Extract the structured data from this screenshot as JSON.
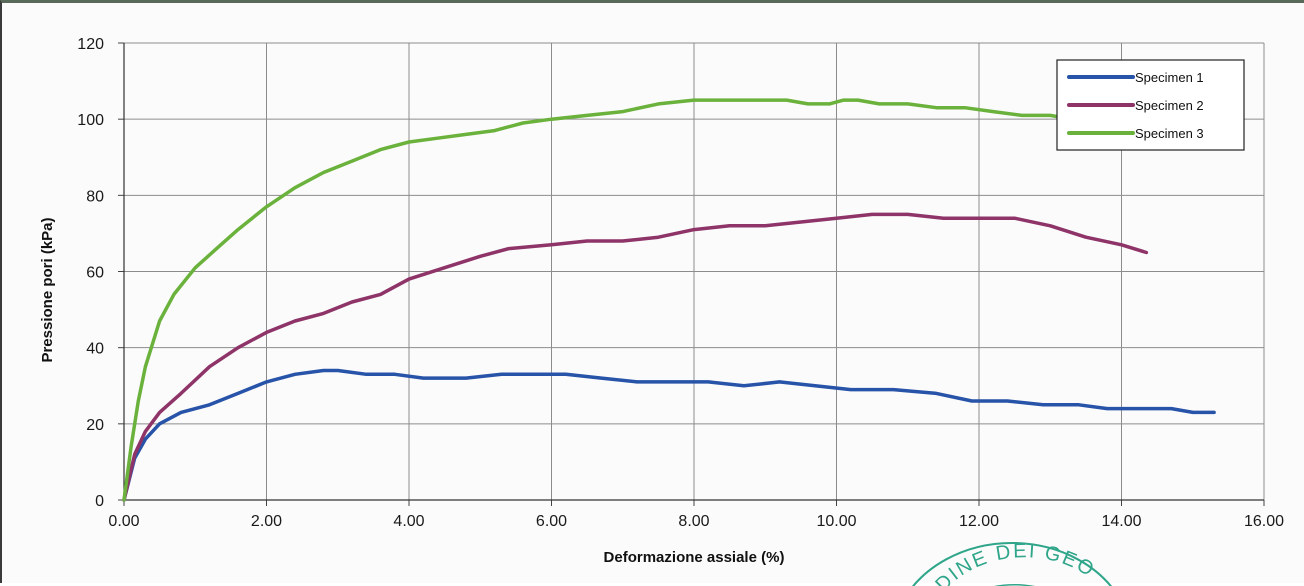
{
  "chart_data": {
    "type": "line",
    "xlabel": "Deformazione assiale (%)",
    "ylabel": "Pressione pori (kPa)",
    "xlim": [
      0,
      16
    ],
    "ylim": [
      0,
      120
    ],
    "x_ticks": [
      "0.00",
      "2.00",
      "4.00",
      "6.00",
      "8.00",
      "10.00",
      "12.00",
      "14.00",
      "16.00"
    ],
    "y_ticks": [
      "0",
      "20",
      "40",
      "60",
      "80",
      "100",
      "120"
    ],
    "grid": true,
    "legend_position": "top-right",
    "series": [
      {
        "name": "Specimen 1",
        "color": "#2753a8",
        "x": [
          0,
          0.15,
          0.3,
          0.5,
          0.8,
          1.2,
          1.6,
          2.0,
          2.4,
          2.8,
          3.0,
          3.4,
          3.8,
          4.2,
          4.8,
          5.3,
          5.7,
          6.2,
          6.7,
          7.2,
          7.6,
          8.2,
          8.7,
          9.2,
          9.7,
          10.2,
          10.8,
          11.4,
          11.9,
          12.4,
          12.9,
          13.4,
          13.8,
          14.3,
          14.7,
          15.0,
          15.3
        ],
        "y": [
          0,
          11,
          16,
          20,
          23,
          25,
          28,
          31,
          33,
          34,
          34,
          33,
          33,
          32,
          32,
          33,
          33,
          33,
          32,
          31,
          31,
          31,
          30,
          31,
          30,
          29,
          29,
          28,
          26,
          26,
          25,
          25,
          24,
          24,
          24,
          23,
          23
        ]
      },
      {
        "name": "Specimen 2",
        "color": "#8e3468",
        "x": [
          0,
          0.15,
          0.3,
          0.5,
          0.8,
          1.2,
          1.6,
          2.0,
          2.4,
          2.8,
          3.2,
          3.6,
          4.0,
          4.5,
          5.0,
          5.4,
          6.0,
          6.5,
          7.0,
          7.5,
          8.0,
          8.5,
          9.0,
          9.5,
          10.0,
          10.5,
          11.0,
          11.5,
          12.0,
          12.5,
          13.0,
          13.5,
          14.0,
          14.35
        ],
        "y": [
          0,
          12,
          18,
          23,
          28,
          35,
          40,
          44,
          47,
          49,
          52,
          54,
          58,
          61,
          64,
          66,
          67,
          68,
          68,
          69,
          71,
          72,
          72,
          73,
          74,
          75,
          75,
          74,
          74,
          74,
          72,
          69,
          67,
          65
        ]
      },
      {
        "name": "Specimen 3",
        "color": "#6ab23c",
        "x": [
          0,
          0.1,
          0.2,
          0.3,
          0.5,
          0.7,
          1.0,
          1.3,
          1.6,
          2.0,
          2.4,
          2.8,
          3.2,
          3.6,
          4.0,
          4.4,
          4.8,
          5.2,
          5.6,
          6.0,
          6.5,
          7.0,
          7.5,
          8.0,
          8.5,
          9.0,
          9.3,
          9.6,
          9.9,
          10.1,
          10.3,
          10.6,
          11.0,
          11.4,
          11.8,
          12.2,
          12.6,
          13.0,
          13.3
        ],
        "y": [
          0,
          14,
          26,
          35,
          47,
          54,
          61,
          66,
          71,
          77,
          82,
          86,
          89,
          92,
          94,
          95,
          96,
          97,
          99,
          100,
          101,
          102,
          104,
          105,
          105,
          105,
          105,
          104,
          104,
          105,
          105,
          104,
          104,
          103,
          103,
          102,
          101,
          101,
          100
        ]
      }
    ]
  },
  "stamp_text": "DINE DEI GEO"
}
